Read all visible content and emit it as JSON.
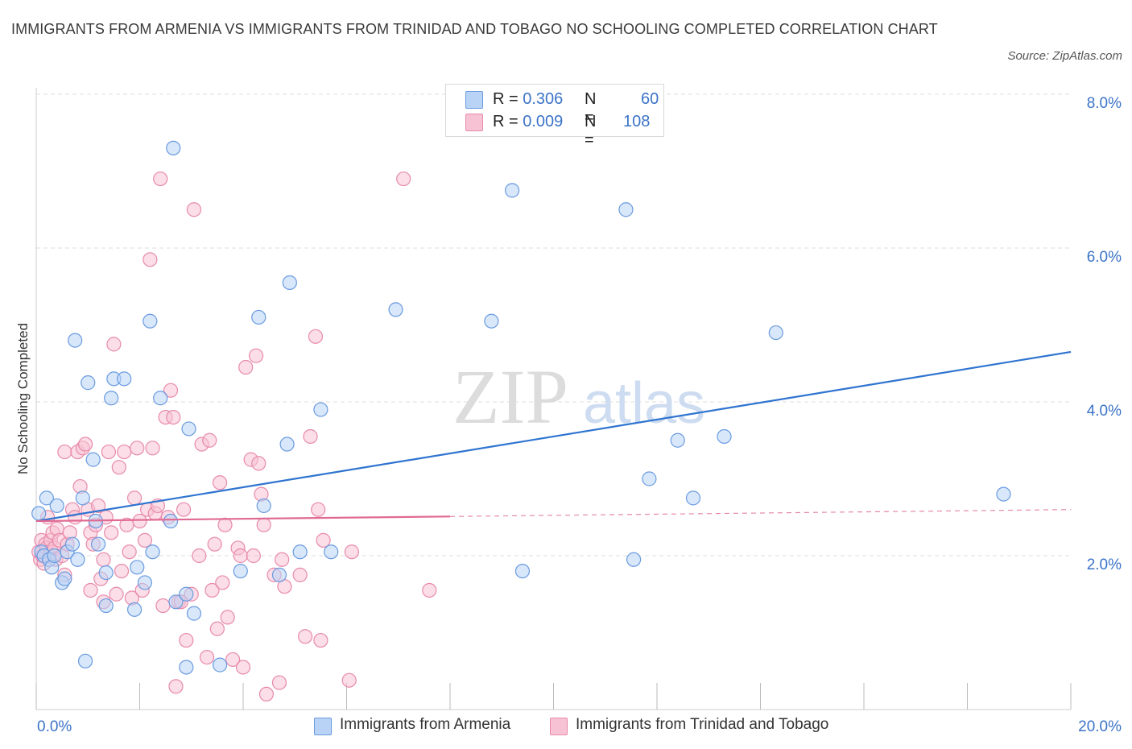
{
  "title": "IMMIGRANTS FROM ARMENIA VS IMMIGRANTS FROM TRINIDAD AND TOBAGO NO SCHOOLING COMPLETED CORRELATION CHART",
  "source": "Source: ZipAtlas.com",
  "legend": {
    "r_label": "R =",
    "n_label": "N =",
    "rows": [
      {
        "r": "0.306",
        "n": "60"
      },
      {
        "r": "0.009",
        "n": "108"
      }
    ]
  },
  "colors": {
    "armenia_fill": "#b8d3f5",
    "armenia_stroke": "#6a9be0",
    "armenia_line": "#2f74d0",
    "trinidad_fill": "#f7c3d4",
    "trinidad_stroke": "#e88aab",
    "trinidad_line": "#e06a93",
    "grid": "#dddddd",
    "tick_text": "#3b73c8"
  },
  "chart_data": {
    "type": "scatter",
    "ylabel": "No Schooling Completed",
    "xlim": [
      0,
      20
    ],
    "ylim": [
      0,
      8
    ],
    "x_tick_labels": [
      {
        "value": 0,
        "label": "0.0%"
      },
      {
        "value": 20,
        "label": "20.0%"
      }
    ],
    "y_tick_labels": [
      {
        "value": 2,
        "label": "2.0%"
      },
      {
        "value": 4,
        "label": "4.0%"
      },
      {
        "value": 6,
        "label": "6.0%"
      },
      {
        "value": 8,
        "label": "8.0%"
      }
    ],
    "watermark": "ZIPatlas",
    "series": [
      {
        "name": "Immigrants from Armenia",
        "trend": {
          "x": [
            0,
            20
          ],
          "y": [
            2.45,
            4.65
          ],
          "dashed_from": null
        },
        "points": [
          [
            0.05,
            2.55
          ],
          [
            0.1,
            2.05
          ],
          [
            0.15,
            2.0
          ],
          [
            0.2,
            2.75
          ],
          [
            0.25,
            1.95
          ],
          [
            0.3,
            1.85
          ],
          [
            0.35,
            2.0
          ],
          [
            0.4,
            2.65
          ],
          [
            0.5,
            1.65
          ],
          [
            0.55,
            1.7
          ],
          [
            0.6,
            2.05
          ],
          [
            0.7,
            2.15
          ],
          [
            0.75,
            4.8
          ],
          [
            0.8,
            1.95
          ],
          [
            0.9,
            2.75
          ],
          [
            0.95,
            0.63
          ],
          [
            1.0,
            4.25
          ],
          [
            1.1,
            3.25
          ],
          [
            1.15,
            2.45
          ],
          [
            1.2,
            2.15
          ],
          [
            1.35,
            1.78
          ],
          [
            1.35,
            1.35
          ],
          [
            1.45,
            4.05
          ],
          [
            1.5,
            4.3
          ],
          [
            1.7,
            4.3
          ],
          [
            1.9,
            1.3
          ],
          [
            1.95,
            1.85
          ],
          [
            2.1,
            1.65
          ],
          [
            2.2,
            5.05
          ],
          [
            2.25,
            2.05
          ],
          [
            2.4,
            4.05
          ],
          [
            2.6,
            2.45
          ],
          [
            2.65,
            7.3
          ],
          [
            2.7,
            1.4
          ],
          [
            2.9,
            1.5
          ],
          [
            2.9,
            0.55
          ],
          [
            2.95,
            3.65
          ],
          [
            3.05,
            1.25
          ],
          [
            3.55,
            0.58
          ],
          [
            3.95,
            1.8
          ],
          [
            4.3,
            5.1
          ],
          [
            4.4,
            2.65
          ],
          [
            4.7,
            1.75
          ],
          [
            4.85,
            3.45
          ],
          [
            4.9,
            5.55
          ],
          [
            5.1,
            2.05
          ],
          [
            5.5,
            3.9
          ],
          [
            5.7,
            2.05
          ],
          [
            6.95,
            5.2
          ],
          [
            8.8,
            5.05
          ],
          [
            9.2,
            6.75
          ],
          [
            9.4,
            1.8
          ],
          [
            11.4,
            6.5
          ],
          [
            11.55,
            1.95
          ],
          [
            11.85,
            3.0
          ],
          [
            12.4,
            3.5
          ],
          [
            12.7,
            2.75
          ],
          [
            13.3,
            3.55
          ],
          [
            14.3,
            4.9
          ],
          [
            18.7,
            2.8
          ]
        ]
      },
      {
        "name": "Immigrants from Trinidad and Tobago",
        "trend": {
          "x": [
            0,
            20
          ],
          "y": [
            2.45,
            2.6
          ],
          "dashed_from": 8.0
        },
        "points": [
          [
            0.05,
            2.05
          ],
          [
            0.08,
            1.95
          ],
          [
            0.1,
            2.2
          ],
          [
            0.12,
            2.0
          ],
          [
            0.15,
            1.9
          ],
          [
            0.18,
            2.15
          ],
          [
            0.2,
            2.1
          ],
          [
            0.22,
            2.5
          ],
          [
            0.25,
            2.0
          ],
          [
            0.28,
            2.2
          ],
          [
            0.3,
            2.05
          ],
          [
            0.32,
            2.3
          ],
          [
            0.35,
            2.1
          ],
          [
            0.38,
            1.95
          ],
          [
            0.4,
            2.35
          ],
          [
            0.45,
            2.2
          ],
          [
            0.5,
            2.0
          ],
          [
            0.55,
            1.75
          ],
          [
            0.55,
            3.35
          ],
          [
            0.6,
            2.15
          ],
          [
            0.65,
            2.3
          ],
          [
            0.7,
            2.6
          ],
          [
            0.75,
            2.5
          ],
          [
            0.8,
            3.35
          ],
          [
            0.85,
            2.9
          ],
          [
            0.9,
            3.4
          ],
          [
            0.95,
            3.45
          ],
          [
            1.0,
            2.6
          ],
          [
            1.05,
            2.3
          ],
          [
            1.05,
            1.55
          ],
          [
            1.1,
            2.15
          ],
          [
            1.15,
            2.4
          ],
          [
            1.2,
            2.65
          ],
          [
            1.25,
            1.7
          ],
          [
            1.3,
            1.95
          ],
          [
            1.3,
            1.4
          ],
          [
            1.35,
            2.5
          ],
          [
            1.4,
            3.35
          ],
          [
            1.45,
            2.3
          ],
          [
            1.5,
            4.75
          ],
          [
            1.55,
            1.5
          ],
          [
            1.6,
            3.15
          ],
          [
            1.65,
            1.8
          ],
          [
            1.7,
            3.35
          ],
          [
            1.75,
            2.4
          ],
          [
            1.8,
            2.05
          ],
          [
            1.85,
            1.45
          ],
          [
            1.9,
            2.75
          ],
          [
            1.95,
            3.4
          ],
          [
            2.0,
            2.45
          ],
          [
            2.05,
            1.55
          ],
          [
            2.1,
            2.2
          ],
          [
            2.15,
            2.6
          ],
          [
            2.2,
            5.85
          ],
          [
            2.25,
            3.4
          ],
          [
            2.3,
            2.55
          ],
          [
            2.35,
            2.65
          ],
          [
            2.4,
            6.9
          ],
          [
            2.45,
            1.35
          ],
          [
            2.5,
            3.8
          ],
          [
            2.55,
            2.5
          ],
          [
            2.6,
            4.15
          ],
          [
            2.65,
            3.8
          ],
          [
            2.7,
            0.3
          ],
          [
            2.75,
            1.4
          ],
          [
            2.8,
            1.4
          ],
          [
            2.85,
            2.6
          ],
          [
            2.9,
            0.9
          ],
          [
            3.0,
            1.5
          ],
          [
            3.05,
            6.5
          ],
          [
            3.15,
            2.0
          ],
          [
            3.2,
            3.45
          ],
          [
            3.3,
            0.68
          ],
          [
            3.35,
            3.5
          ],
          [
            3.4,
            1.55
          ],
          [
            3.45,
            2.15
          ],
          [
            3.5,
            1.05
          ],
          [
            3.55,
            2.95
          ],
          [
            3.6,
            1.65
          ],
          [
            3.65,
            2.4
          ],
          [
            3.7,
            1.2
          ],
          [
            3.8,
            0.65
          ],
          [
            3.9,
            2.1
          ],
          [
            3.95,
            2.0
          ],
          [
            4.0,
            0.55
          ],
          [
            4.05,
            4.45
          ],
          [
            4.15,
            3.25
          ],
          [
            4.2,
            2.0
          ],
          [
            4.25,
            4.6
          ],
          [
            4.3,
            3.2
          ],
          [
            4.35,
            2.8
          ],
          [
            4.4,
            2.4
          ],
          [
            4.45,
            0.2
          ],
          [
            4.6,
            1.75
          ],
          [
            4.7,
            0.35
          ],
          [
            4.75,
            1.95
          ],
          [
            4.8,
            1.6
          ],
          [
            5.1,
            1.75
          ],
          [
            5.2,
            0.95
          ],
          [
            5.3,
            3.55
          ],
          [
            5.4,
            4.85
          ],
          [
            5.45,
            2.6
          ],
          [
            5.5,
            0.9
          ],
          [
            5.55,
            2.2
          ],
          [
            6.05,
            0.38
          ],
          [
            6.1,
            2.05
          ],
          [
            7.1,
            6.9
          ],
          [
            7.6,
            1.55
          ]
        ]
      }
    ]
  },
  "bottom_legend": [
    {
      "label": "Immigrants from Armenia"
    },
    {
      "label": "Immigrants from Trinidad and Tobago"
    }
  ]
}
